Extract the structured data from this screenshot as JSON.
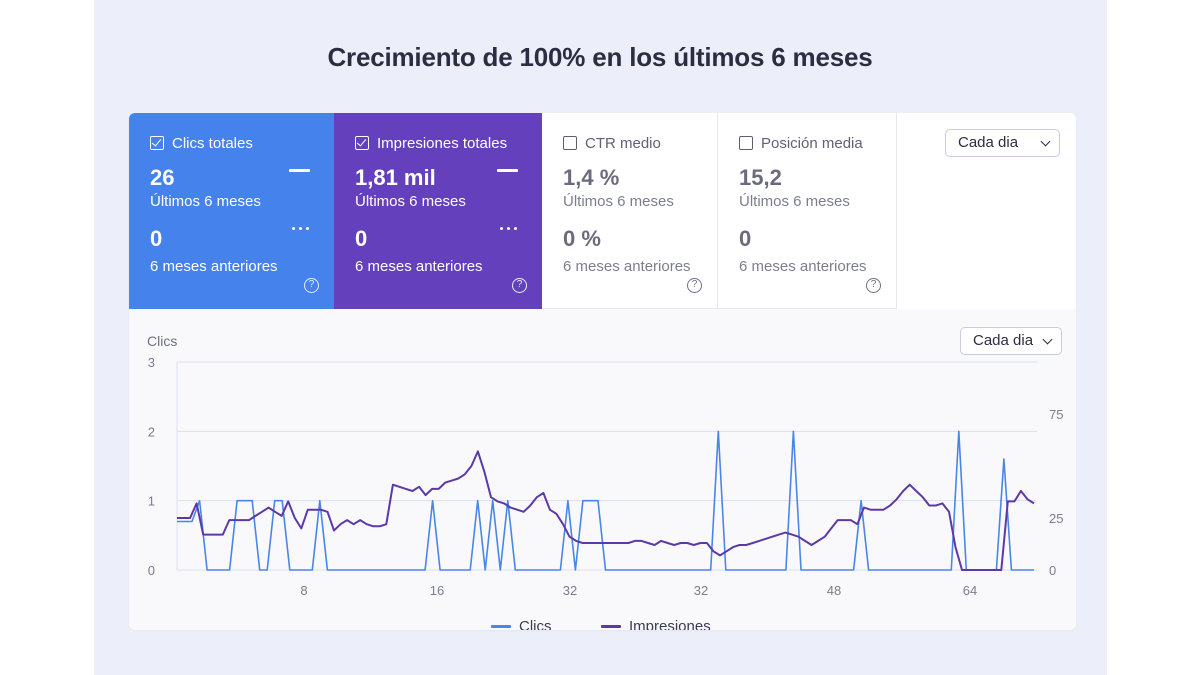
{
  "page_title": "Crecimiento de 100% en los últimos 6 meses",
  "metrics": [
    {
      "label": "Clics totales",
      "value": "26",
      "period": "Últimos 6 meses",
      "prev_value": "0",
      "prev_period": "6 meses anteriores",
      "checked": true
    },
    {
      "label": "Impresiones totales",
      "value": "1,81 mil",
      "period": "Últimos 6 meses",
      "prev_value": "0",
      "prev_period": "6 meses anteriores",
      "checked": true
    },
    {
      "label": "CTR medio",
      "value": "1,4 %",
      "period": "Últimos 6 meses",
      "prev_value": "0 %",
      "prev_period": "6 meses anteriores",
      "checked": false
    },
    {
      "label": "Posición media",
      "value": "15,2",
      "period": "Últimos 6 meses",
      "prev_value": "0",
      "prev_period": "6 meses anteriores",
      "checked": false
    }
  ],
  "help_glyph": "?",
  "dropdown_top": {
    "label": "Cada dia"
  },
  "dropdown_chart": {
    "label": "Cada dia"
  },
  "colors": {
    "clics": "#4a86e8",
    "impresiones": "#5b3aa8",
    "grid": "#dcdff0",
    "tick": "#7b7d90"
  },
  "chart_data": {
    "type": "line",
    "ylabel_left": "Clics",
    "ylim_left": [
      0,
      3
    ],
    "yticks_left": [
      "0",
      "1",
      "2",
      "3"
    ],
    "ylim_right": [
      0,
      100
    ],
    "yticks_right": [
      "0",
      "25",
      "75"
    ],
    "xticks": [
      "8",
      "16",
      "32",
      "32",
      "48",
      "64"
    ],
    "series": [
      {
        "name": "Clics",
        "axis": "left",
        "values": [
          0.7,
          0.7,
          0.7,
          1,
          0,
          0,
          0,
          0,
          1,
          1,
          1,
          0,
          0,
          1,
          1,
          0,
          0,
          0,
          0,
          1,
          0,
          0,
          0,
          0,
          0,
          0,
          0,
          0,
          0,
          0,
          0,
          0,
          0,
          0,
          1,
          0,
          0,
          0,
          0,
          0,
          1,
          0,
          1,
          0,
          1,
          0,
          0,
          0,
          0,
          0,
          0,
          0,
          1,
          0,
          1,
          1,
          1,
          0,
          0,
          0,
          0,
          0,
          0,
          0,
          0,
          0,
          0,
          0,
          0,
          0,
          0,
          0,
          2,
          0,
          0,
          0,
          0,
          0,
          0,
          0,
          0,
          0,
          2,
          0,
          0,
          0,
          0,
          0,
          0,
          0,
          0,
          1,
          0,
          0,
          0,
          0,
          0,
          0,
          0,
          0,
          0,
          0,
          0,
          0,
          2,
          0,
          0,
          0,
          0,
          0,
          1.6,
          0,
          0,
          0,
          0
        ]
      },
      {
        "name": "Impresiones",
        "axis": "right",
        "values": [
          25,
          25,
          25,
          32,
          17,
          17,
          17,
          17,
          24,
          24,
          24,
          24,
          26,
          28,
          30,
          28,
          26,
          33,
          25,
          20,
          29,
          29,
          29,
          28,
          19,
          22,
          24,
          22,
          24,
          22,
          21,
          21,
          22,
          41,
          40,
          39,
          38,
          40,
          36,
          39,
          39,
          42,
          43,
          44,
          46,
          50,
          57,
          47,
          35,
          33,
          32,
          30,
          29,
          28,
          31,
          35,
          37,
          29,
          27,
          22,
          16,
          14,
          13,
          13,
          13,
          13,
          13,
          13,
          13,
          13,
          14,
          14,
          13,
          12,
          14,
          13,
          12,
          13,
          13,
          12,
          13,
          13,
          9,
          7,
          9,
          11,
          12,
          12,
          13,
          14,
          15,
          16,
          17,
          18,
          17,
          16,
          14,
          12,
          14,
          16,
          20,
          24,
          24,
          24,
          22,
          30,
          29,
          29,
          29,
          31,
          34,
          38,
          41,
          38,
          35,
          31,
          31,
          32,
          28,
          11,
          0,
          0,
          0,
          0,
          0,
          0,
          0,
          33,
          33,
          38,
          34,
          32
        ]
      }
    ]
  },
  "legend": [
    {
      "name": "Clics"
    },
    {
      "name": "Impresiones"
    }
  ]
}
